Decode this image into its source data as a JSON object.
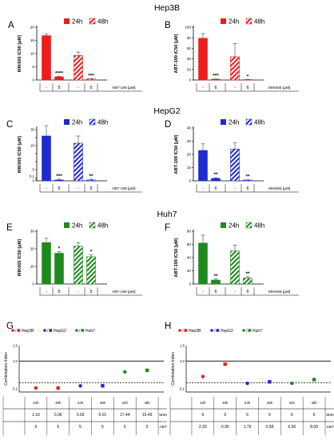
{
  "sections": {
    "hep3b": "Hep3B",
    "hepg2": "HepG2",
    "huh7": "Huh7"
  },
  "panel_letters": [
    "A",
    "B",
    "C",
    "D",
    "E",
    "F",
    "G",
    "H"
  ],
  "legend": {
    "h24": "24h",
    "h48": "48h"
  },
  "colors": {
    "hep3b": "#ee1c1c",
    "hepg2": "#1f2bd0",
    "huh7": "#1e8a1e"
  },
  "x_labels": {
    "abt": "ABT-199 [µM]",
    "mik": "MIK665 [µM]"
  },
  "chart_data": [
    {
      "panel": "A",
      "type": "bar",
      "ylabel": "MIK665 IC50 [µM]",
      "ylim": [
        0,
        20
      ],
      "yticks": [
        0,
        5,
        10,
        15,
        20
      ],
      "bars": [
        {
          "value": 16.8,
          "err": 0.6
        },
        {
          "value": 1.2,
          "err": 0.2
        },
        {
          "value": 9.3,
          "err": 1.3
        },
        {
          "value": 0.4,
          "err": 0.1
        }
      ],
      "drug": [
        "-",
        "5",
        "-",
        "5"
      ],
      "sig": [
        "",
        "****",
        "",
        "***"
      ]
    },
    {
      "panel": "B",
      "type": "bar",
      "ylabel": "ABT-199 IC50 [µM]",
      "ylim": [
        0,
        100
      ],
      "yticks": [
        0,
        20,
        40,
        60,
        80,
        100
      ],
      "bars": [
        {
          "value": 79,
          "err": 9
        },
        {
          "value": 1.5,
          "err": 0.5
        },
        {
          "value": 44,
          "err": 25
        },
        {
          "value": 0.8,
          "err": 0.3
        }
      ],
      "drug": [
        "-",
        "6",
        "-",
        "6"
      ],
      "sig": [
        "",
        "***",
        "",
        "*"
      ]
    },
    {
      "panel": "C",
      "type": "bar",
      "ylabel": "MIK665 IC50 [µM]",
      "ylim": [
        0,
        30
      ],
      "yticks": [
        "0",
        "0.05",
        "0.1",
        "5",
        "10",
        "15",
        "20",
        "25",
        "30"
      ],
      "bars": [
        {
          "value": 20,
          "err": 7
        },
        {
          "value": 0.03,
          "err": 0.005
        },
        {
          "value": 17,
          "err": 4
        },
        {
          "value": 0.02,
          "err": 0.005
        }
      ],
      "drug": [
        "-",
        "5",
        "-",
        "5"
      ],
      "sig": [
        "",
        "***",
        "",
        "**"
      ]
    },
    {
      "panel": "D",
      "type": "bar",
      "ylabel": "ABT-199 IC50 [µM]",
      "ylim": [
        0,
        40
      ],
      "yticks": [
        0,
        10,
        20,
        30,
        40
      ],
      "bars": [
        {
          "value": 23,
          "err": 5
        },
        {
          "value": 1.8,
          "err": 0.5
        },
        {
          "value": 24,
          "err": 5
        },
        {
          "value": 0.6,
          "err": 0.2
        }
      ],
      "drug": [
        "-",
        "6",
        "-",
        "6"
      ],
      "sig": [
        "",
        "**",
        "",
        "**"
      ]
    },
    {
      "panel": "E",
      "type": "bar",
      "ylabel": "MIK665 IC50 [µM]",
      "ylim": [
        0,
        30
      ],
      "yticks": [
        0,
        10,
        20,
        30
      ],
      "bars": [
        {
          "value": 23.5,
          "err": 2.5
        },
        {
          "value": 17.5,
          "err": 1
        },
        {
          "value": 21.5,
          "err": 2
        },
        {
          "value": 15.5,
          "err": 1
        }
      ],
      "drug": [
        "-",
        "5",
        "-",
        "5"
      ],
      "sig": [
        "",
        "*",
        "",
        "*"
      ]
    },
    {
      "panel": "F",
      "type": "bar",
      "ylabel": "ABT-199 IC50 [µM]",
      "ylim": [
        0,
        80
      ],
      "yticks": [
        0,
        20,
        40,
        60,
        80
      ],
      "bars": [
        {
          "value": 62,
          "err": 12
        },
        {
          "value": 6,
          "err": 1.5
        },
        {
          "value": 50,
          "err": 9
        },
        {
          "value": 9,
          "err": 2
        }
      ],
      "drug": [
        "-",
        "6",
        "-",
        "6"
      ],
      "sig": [
        "",
        "**",
        "",
        "**"
      ]
    },
    {
      "panel": "G",
      "type": "scatter",
      "ylabel": "Combination Index",
      "yticks": [
        "0.1",
        "1.0",
        "1.5"
      ],
      "legend": [
        "Hep3B",
        "HepG2",
        "Huh7"
      ],
      "points": [
        {
          "cell": "hep3b",
          "value": 0.13
        },
        {
          "cell": "hep3b",
          "value": 0.13
        },
        {
          "cell": "hepg2",
          "value": 0.2
        },
        {
          "cell": "hepg2",
          "value": 0.2
        },
        {
          "cell": "huh7",
          "value": 0.65
        },
        {
          "cell": "huh7",
          "value": 0.7
        }
      ],
      "rows": [
        {
          "values": [
            "24h",
            "48h",
            "24h",
            "48h",
            "24h",
            "48h"
          ]
        },
        {
          "values": [
            "1.16",
            "0.36",
            "0.03",
            "0.01",
            "17.44",
            "15.49"
          ],
          "label": "MIK665 [µM]"
        },
        {
          "values": [
            "5",
            "5",
            "5",
            "5",
            "5",
            "5"
          ],
          "label": "ABT-199 [µM]"
        }
      ]
    },
    {
      "panel": "H",
      "type": "scatter",
      "ylabel": "Combination Index",
      "yticks": [
        "0.1",
        "1.0",
        "1.5"
      ],
      "legend": [
        "Hep3B",
        "HepG2",
        "Huh7"
      ],
      "points": [
        {
          "cell": "hep3b",
          "value": 0.5
        },
        {
          "cell": "hep3b",
          "value": 0.9
        },
        {
          "cell": "hepg2",
          "value": 0.28
        },
        {
          "cell": "hepg2",
          "value": 0.33
        },
        {
          "cell": "huh7",
          "value": 0.28
        },
        {
          "cell": "huh7",
          "value": 0.4
        }
      ],
      "rows": [
        {
          "values": [
            "24h",
            "48h",
            "24h",
            "48h",
            "24h",
            "48h"
          ]
        },
        {
          "values": [
            "6",
            "6",
            "6",
            "6",
            "6",
            "6"
          ],
          "label": "MIK665 [µM]"
        },
        {
          "values": [
            "2.30",
            "0.95",
            "1.79",
            "0.58",
            "6.56",
            "8.09"
          ],
          "label": "ABT-199 [µM]"
        }
      ]
    }
  ]
}
